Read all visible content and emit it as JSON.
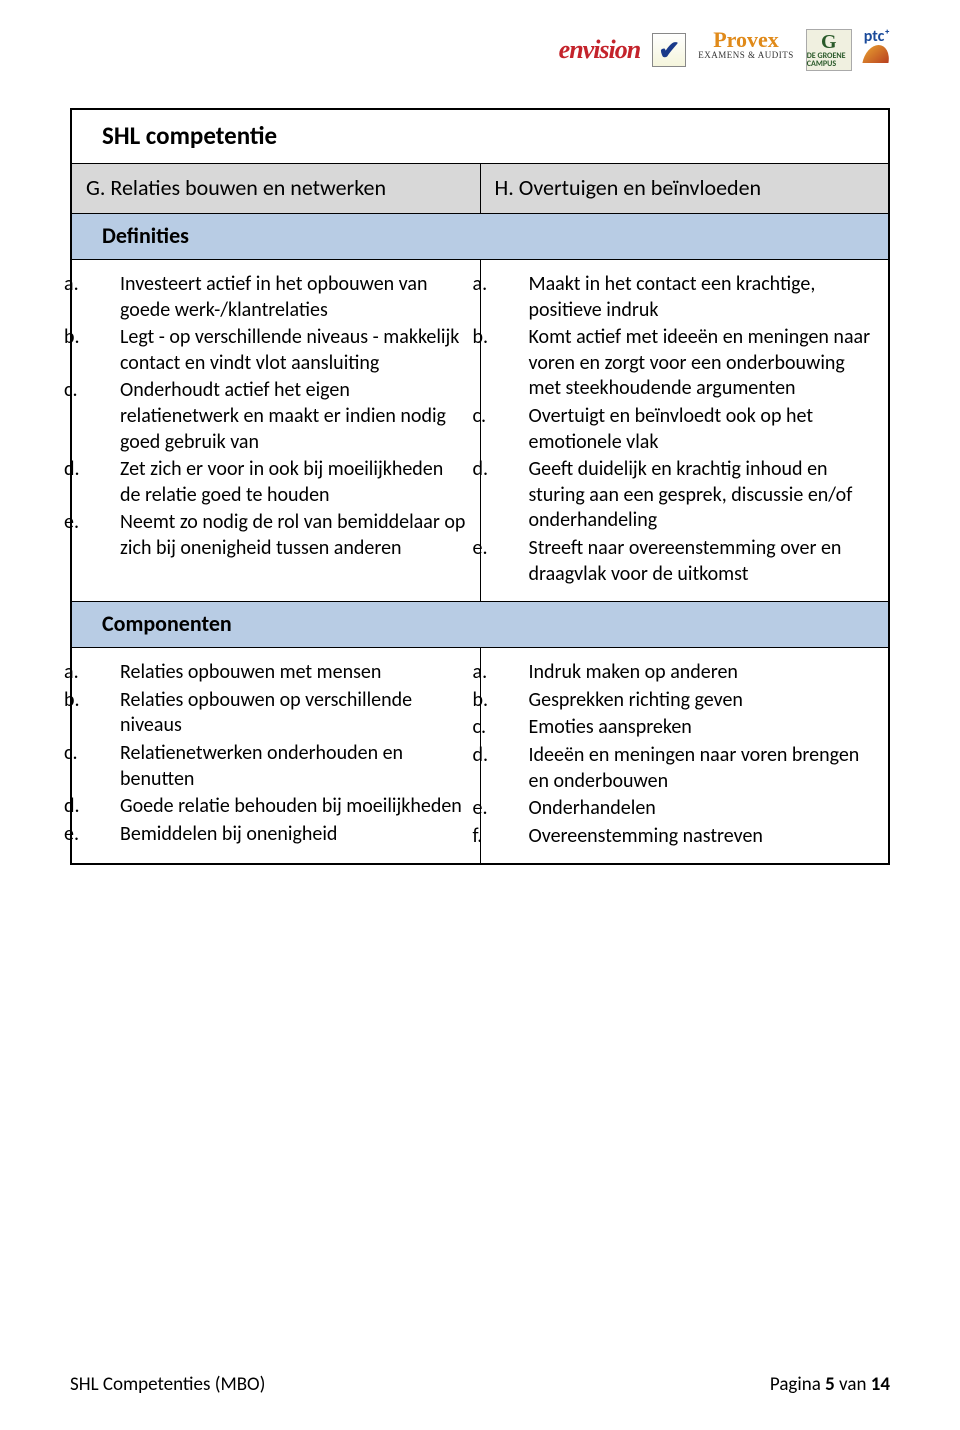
{
  "logos": {
    "envision": "envision",
    "provex": "Provex",
    "provex_sub": "EXAMENS & AUDITS",
    "groene_top": "G",
    "groene_sub": "DE GROENE CAMPUS",
    "ptc": "ptc⁺"
  },
  "title": "SHL competentie",
  "col_left_head_letter": "G.",
  "col_left_head_text": "Relaties bouwen en netwerken",
  "col_right_head_letter": "H.",
  "col_right_head_text": "Overtuigen en beïnvloeden",
  "section_defs": "Definities",
  "defs_left": [
    {
      "m": "a.",
      "t": "Investeert actief in het opbouwen van goede werk-/klantrelaties"
    },
    {
      "m": "b.",
      "t": "Legt - op verschillende niveaus - makkelijk contact en vindt vlot aansluiting"
    },
    {
      "m": "c.",
      "t": "Onderhoudt actief het eigen relatienetwerk en maakt er indien nodig goed gebruik van"
    },
    {
      "m": "d.",
      "t": "Zet zich er voor in ook bij moeilijkheden de relatie goed te houden"
    },
    {
      "m": "e.",
      "t": "Neemt zo nodig de rol van bemiddelaar op zich bij onenigheid tussen anderen"
    }
  ],
  "defs_right": [
    {
      "m": "a.",
      "t": "Maakt in het contact een krachtige, positieve indruk"
    },
    {
      "m": "b.",
      "t": "Komt actief met ideeën en meningen naar voren en zorgt voor een onderbouwing met steekhoudende argumenten"
    },
    {
      "m": "c.",
      "t": "Overtuigt en beïnvloedt ook op het emotionele vlak"
    },
    {
      "m": "d.",
      "t": "Geeft duidelijk en krachtig inhoud en sturing aan een gesprek, discussie en/of onderhandeling"
    },
    {
      "m": "e.",
      "t": "Streeft naar overeenstemming over en draagvlak voor de uitkomst"
    }
  ],
  "section_comps": "Componenten",
  "comps_left": [
    {
      "m": "a.",
      "t": "Relaties opbouwen met mensen"
    },
    {
      "m": "b.",
      "t": "Relaties opbouwen op verschillende niveaus"
    },
    {
      "m": "c.",
      "t": "Relatienetwerken onderhouden en benutten"
    },
    {
      "m": "d.",
      "t": "Goede relatie behouden bij moeilijkheden"
    },
    {
      "m": "e.",
      "t": "Bemiddelen bij onenigheid"
    }
  ],
  "comps_right": [
    {
      "m": "a.",
      "t": "Indruk maken op anderen"
    },
    {
      "m": "b.",
      "t": "Gesprekken richting geven"
    },
    {
      "m": "c.",
      "t": "Emoties aanspreken"
    },
    {
      "m": "d.",
      "t": "Ideeën en meningen naar voren brengen en onderbouwen"
    },
    {
      "m": "e.",
      "t": "Onderhandelen"
    },
    {
      "m": "f.",
      "t": "Overeenstemming nastreven"
    }
  ],
  "footer_left": "SHL Competenties (MBO)",
  "footer_right_prefix": "Pagina ",
  "footer_page": "5",
  "footer_right_mid": " van ",
  "footer_total": "14",
  "colors": {
    "blue_header": "#b8cce4",
    "gray_header": "#d8d8d8",
    "border": "#000000",
    "text": "#000000",
    "background": "#ffffff"
  }
}
